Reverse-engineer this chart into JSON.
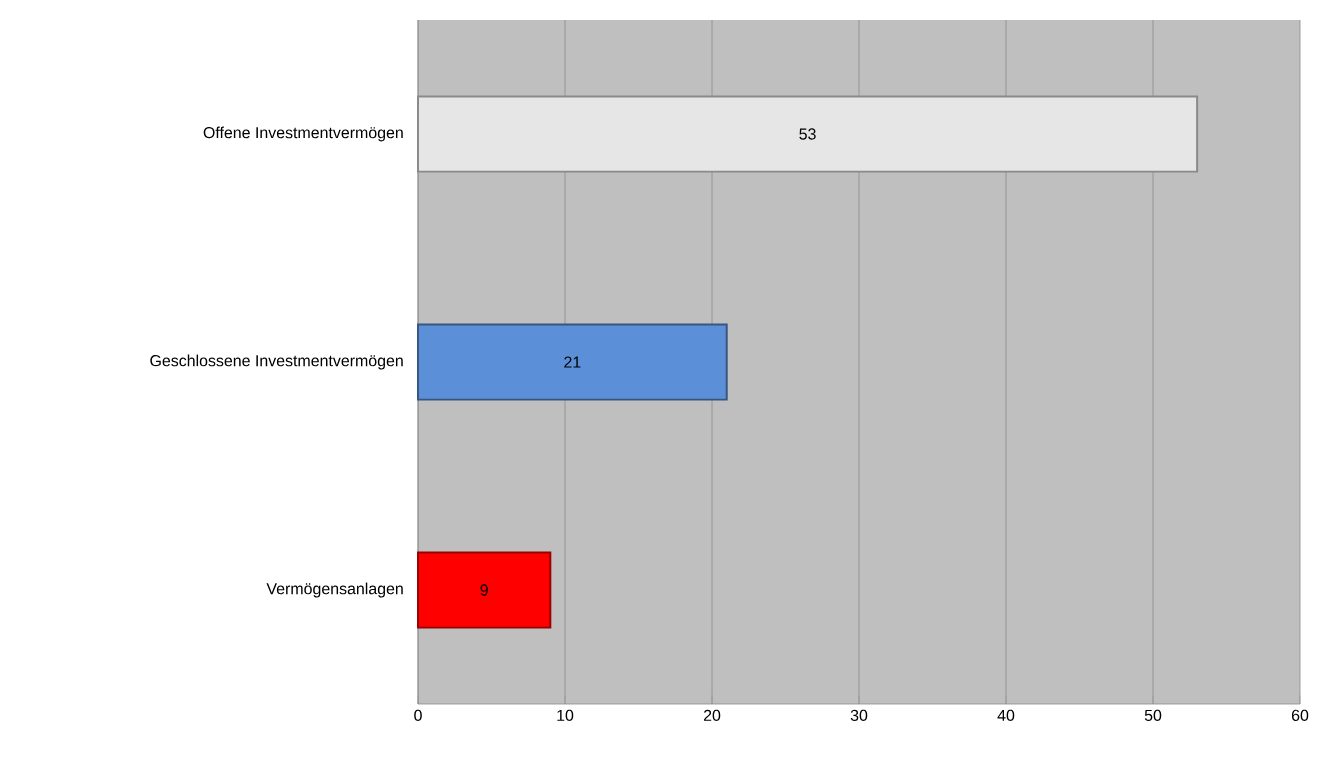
{
  "chart_data": {
    "type": "bar",
    "orientation": "horizontal",
    "categories": [
      "Offene Investmentvermögen",
      "Geschlossene Investmentvermögen",
      "Vermögensanlagen"
    ],
    "values": [
      53,
      21,
      9
    ],
    "colors": [
      "#e6e6e6",
      "#5b8fd8",
      "#ff0000"
    ],
    "xlim": [
      0,
      60
    ],
    "xticks": [
      0,
      10,
      20,
      30,
      40,
      50,
      60
    ],
    "grid": "x",
    "data_labels": true
  }
}
